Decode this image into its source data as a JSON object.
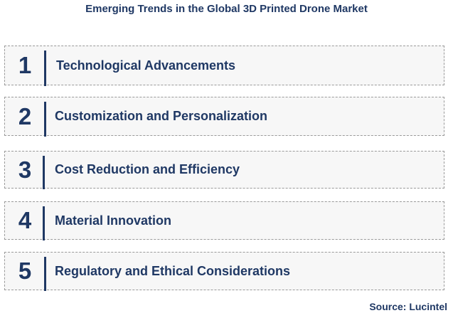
{
  "header": {
    "title": "Emerging Trends in the Global 3D Printed Drone Market"
  },
  "items": [
    {
      "number": "1",
      "label": "Technological Advancements"
    },
    {
      "number": "2",
      "label": "Customization and Personalization"
    },
    {
      "number": "3",
      "label": "Cost Reduction and Efficiency"
    },
    {
      "number": "4",
      "label": "Material Innovation"
    },
    {
      "number": "5",
      "label": "Regulatory and Ethical Considerations"
    }
  ],
  "footer": {
    "source": "Source: Lucintel"
  }
}
